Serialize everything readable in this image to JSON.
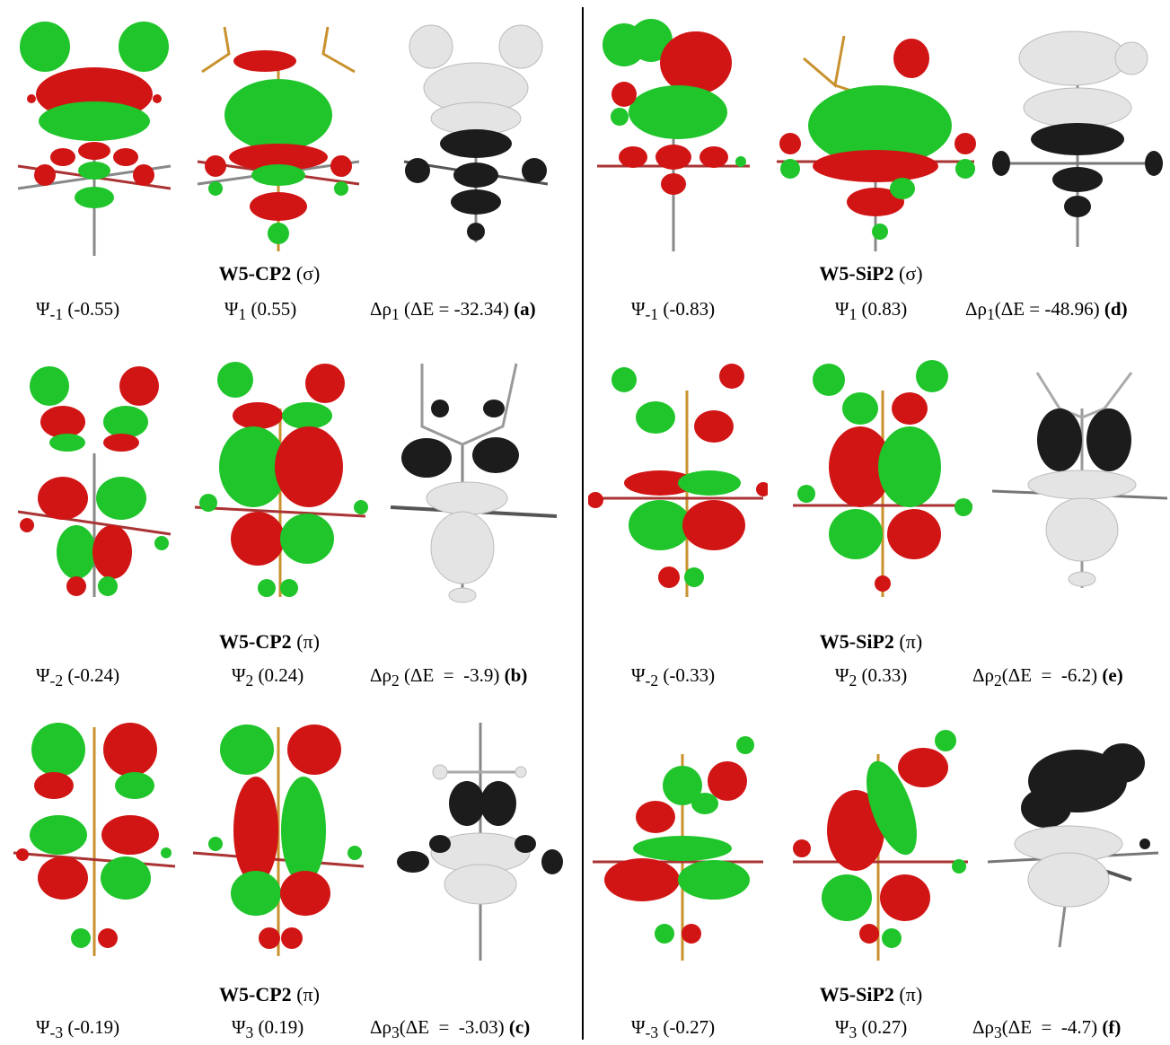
{
  "colors": {
    "lobe_positive": "#1fc52a",
    "lobe_negative": "#d11515",
    "density_dark": "#1c1c1c",
    "density_light": "#e4e4e4",
    "bond_orange": "#c9922f",
    "bond_grey": "#888888"
  },
  "rows": [
    {
      "left": {
        "title_bold": "W5-CP2",
        "title_sym": "(σ)",
        "psi_neg": {
          "sym": "Ψ",
          "sub": "-1",
          "val": "(-0.55)"
        },
        "psi_pos": {
          "sym": "Ψ",
          "sub": "1",
          "val": "(0.55)"
        },
        "drho": {
          "sym": "Δρ",
          "sub": "1",
          "text": "(ΔE = -32.34)",
          "tag": "(a)"
        }
      },
      "right": {
        "title_bold": "W5-SiP2",
        "title_sym": "(σ)",
        "psi_neg": {
          "sym": "Ψ",
          "sub": "-1",
          "val": "(-0.83)"
        },
        "psi_pos": {
          "sym": "Ψ",
          "sub": "1",
          "val": "(0.83)"
        },
        "drho": {
          "sym": "Δρ",
          "sub": "1",
          "text": "(ΔE = -48.96)",
          "tag": "(d)"
        }
      }
    },
    {
      "left": {
        "title_bold": "W5-CP2",
        "title_sym": "(π)",
        "psi_neg": {
          "sym": "Ψ",
          "sub": "-2",
          "val": "(-0.24)"
        },
        "psi_pos": {
          "sym": "Ψ",
          "sub": "2",
          "val": "(0.24)"
        },
        "drho": {
          "sym": "Δρ",
          "sub": "2",
          "text": "(ΔE  =  -3.9)",
          "tag": "(b)"
        }
      },
      "right": {
        "title_bold": "W5-SiP2",
        "title_sym": "(π)",
        "psi_neg": {
          "sym": "Ψ",
          "sub": "-2",
          "val": "(-0.33)"
        },
        "psi_pos": {
          "sym": "Ψ",
          "sub": "2",
          "val": "(0.33)"
        },
        "drho": {
          "sym": "Δρ",
          "sub": "2",
          "text": "(ΔE  =  -6.2)",
          "tag": "(e)"
        }
      }
    },
    {
      "left": {
        "title_bold": "W5-CP2",
        "title_sym": "(π)",
        "psi_neg": {
          "sym": "Ψ",
          "sub": "-3",
          "val": "(-0.19)"
        },
        "psi_pos": {
          "sym": "Ψ",
          "sub": "3",
          "val": "(0.19)"
        },
        "drho": {
          "sym": "Δρ",
          "sub": "3",
          "text": "(ΔE  =  -3.03)",
          "tag": "(c)"
        }
      },
      "right": {
        "title_bold": "W5-SiP2",
        "title_sym": "(π)",
        "psi_neg": {
          "sym": "Ψ",
          "sub": "-3",
          "val": "(-0.27)"
        },
        "psi_pos": {
          "sym": "Ψ",
          "sub": "3",
          "val": "(0.27)"
        },
        "drho": {
          "sym": "Δρ",
          "sub": "3",
          "text": "(ΔE  =  -4.7)",
          "tag": "(f)"
        }
      }
    }
  ]
}
